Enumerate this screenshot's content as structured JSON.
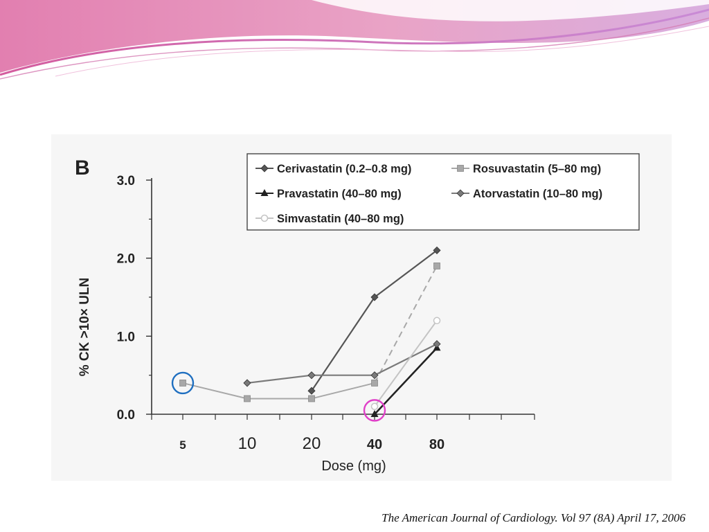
{
  "slide": {
    "citation": "The American Journal of Cardiology. Vol 97 (8A) April 17, 2006",
    "banner_colors": [
      "#e58fb6",
      "#d86aa6",
      "#c9a0d8"
    ]
  },
  "chart_data": {
    "type": "line",
    "panel_label": "B",
    "title": "",
    "xlabel": "Dose (mg)",
    "ylabel": "% CK >10× ULN",
    "x_ticks": [
      "5",
      "10",
      "20",
      "40",
      "80"
    ],
    "ylim": [
      0,
      3
    ],
    "y_ticks": [
      "0.0",
      "1.0",
      "2.0",
      "3.0"
    ],
    "grid": false,
    "legend_position": "top-right",
    "series": [
      {
        "name": "Cerivastatin (0.2–0.8 mg)",
        "marker": "diamond",
        "color": "#555555",
        "dash": false,
        "points": [
          {
            "x": "20",
            "y": 0.3
          },
          {
            "x": "40",
            "y": 1.5
          },
          {
            "x": "80",
            "y": 2.1
          }
        ]
      },
      {
        "name": "Rosuvastatin (5–80 mg)",
        "marker": "square",
        "color": "#a8a8a8",
        "dash": false,
        "points": [
          {
            "x": "5",
            "y": 0.4
          },
          {
            "x": "10",
            "y": 0.2
          },
          {
            "x": "20",
            "y": 0.2
          },
          {
            "x": "40",
            "y": 0.4
          },
          {
            "x": "80",
            "y": 1.9
          }
        ]
      },
      {
        "name": "Pravastatin (40–80 mg)",
        "marker": "triangle",
        "color": "#222222",
        "dash": false,
        "points": [
          {
            "x": "40",
            "y": 0.0
          },
          {
            "x": "80",
            "y": 0.85
          }
        ]
      },
      {
        "name": "Atorvastatin (10–80 mg)",
        "marker": "diamond",
        "color": "#7a7a7a",
        "dash": false,
        "points": [
          {
            "x": "10",
            "y": 0.4
          },
          {
            "x": "20",
            "y": 0.5
          },
          {
            "x": "40",
            "y": 0.5
          },
          {
            "x": "80",
            "y": 0.9
          }
        ]
      },
      {
        "name": "Simvastatin (40–80 mg)",
        "marker": "circle",
        "color": "#c4c4c4",
        "dash": false,
        "points": [
          {
            "x": "40",
            "y": 0.1
          },
          {
            "x": "80",
            "y": 1.2
          }
        ]
      }
    ],
    "annotations": [
      {
        "type": "circle",
        "x": "5",
        "y": 0.4,
        "color": "#1f6fc0"
      },
      {
        "type": "circle",
        "x": "40",
        "y": 0.05,
        "color": "#e040c8"
      }
    ]
  }
}
